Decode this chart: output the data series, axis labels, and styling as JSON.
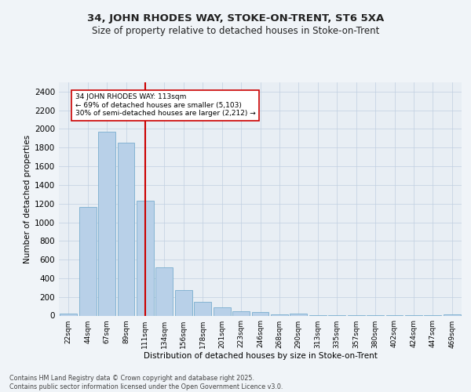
{
  "title1": "34, JOHN RHODES WAY, STOKE-ON-TRENT, ST6 5XA",
  "title2": "Size of property relative to detached houses in Stoke-on-Trent",
  "xlabel": "Distribution of detached houses by size in Stoke-on-Trent",
  "ylabel": "Number of detached properties",
  "bar_labels": [
    "22sqm",
    "44sqm",
    "67sqm",
    "89sqm",
    "111sqm",
    "134sqm",
    "156sqm",
    "178sqm",
    "201sqm",
    "223sqm",
    "246sqm",
    "268sqm",
    "290sqm",
    "313sqm",
    "335sqm",
    "357sqm",
    "380sqm",
    "402sqm",
    "424sqm",
    "447sqm",
    "469sqm"
  ],
  "bar_values": [
    25,
    1160,
    1970,
    1850,
    1230,
    520,
    275,
    150,
    90,
    45,
    40,
    15,
    20,
    8,
    5,
    3,
    3,
    2,
    2,
    2,
    15
  ],
  "bar_color": "#b8d0e8",
  "bar_edge_color": "#7aadcf",
  "vline_x": 4,
  "vline_color": "#cc0000",
  "annotation_text": "34 JOHN RHODES WAY: 113sqm\n← 69% of detached houses are smaller (5,103)\n30% of semi-detached houses are larger (2,212) →",
  "annotation_box_color": "#ffffff",
  "annotation_box_edge_color": "#cc0000",
  "ylim": [
    0,
    2500
  ],
  "yticks": [
    0,
    200,
    400,
    600,
    800,
    1000,
    1200,
    1400,
    1600,
    1800,
    2000,
    2200,
    2400
  ],
  "footer1": "Contains HM Land Registry data © Crown copyright and database right 2025.",
  "footer2": "Contains public sector information licensed under the Open Government Licence v3.0.",
  "fig_bg_color": "#f0f4f8",
  "plot_bg_color": "#e8eef4"
}
